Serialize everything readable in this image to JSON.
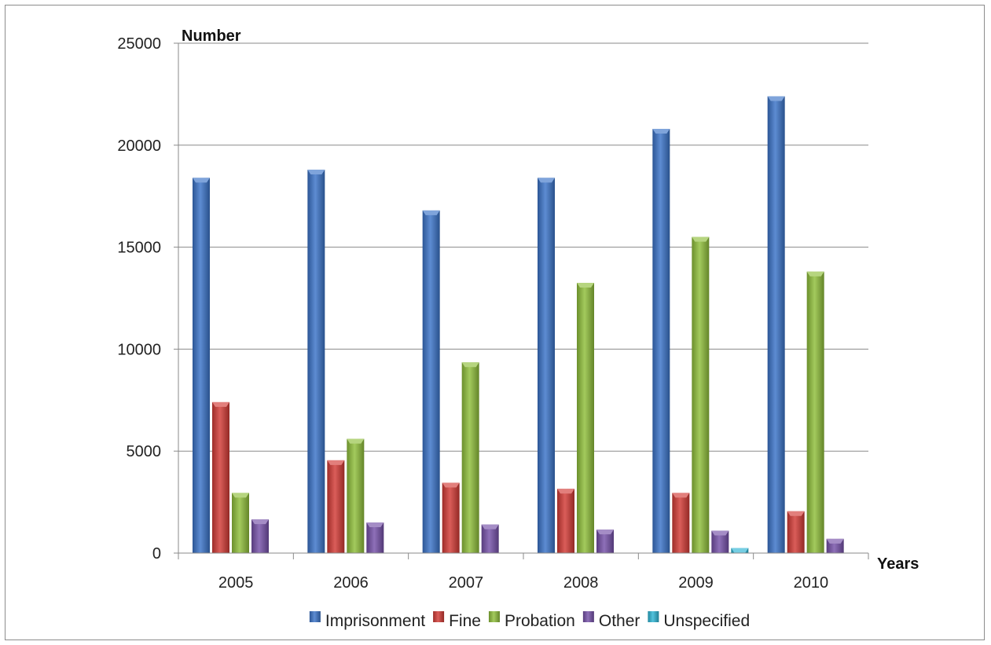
{
  "chart_data": {
    "type": "bar",
    "title": "",
    "ylabel": "Number",
    "xlabel": "Years",
    "categories": [
      "2005",
      "2006",
      "2007",
      "2008",
      "2009",
      "2010"
    ],
    "ylim": [
      0,
      25000
    ],
    "yticks": [
      0,
      5000,
      10000,
      15000,
      20000,
      25000
    ],
    "grid": true,
    "legend_position": "bottom",
    "series": [
      {
        "name": "Imprisonment",
        "color": "#3A73C8",
        "values": [
          18400,
          18800,
          16800,
          18400,
          20800,
          22400
        ]
      },
      {
        "name": "Fine",
        "color": "#D23A35",
        "values": [
          7400,
          4550,
          3450,
          3150,
          2950,
          2050
        ]
      },
      {
        "name": "Probation",
        "color": "#8FBE3A",
        "values": [
          2950,
          5600,
          9350,
          13250,
          15500,
          13800
        ]
      },
      {
        "name": "Other",
        "color": "#7550A8",
        "values": [
          1650,
          1500,
          1400,
          1150,
          1100,
          700
        ]
      },
      {
        "name": "Unspecified",
        "color": "#2CB4D4",
        "values": [
          0,
          0,
          0,
          0,
          250,
          0
        ]
      }
    ]
  }
}
